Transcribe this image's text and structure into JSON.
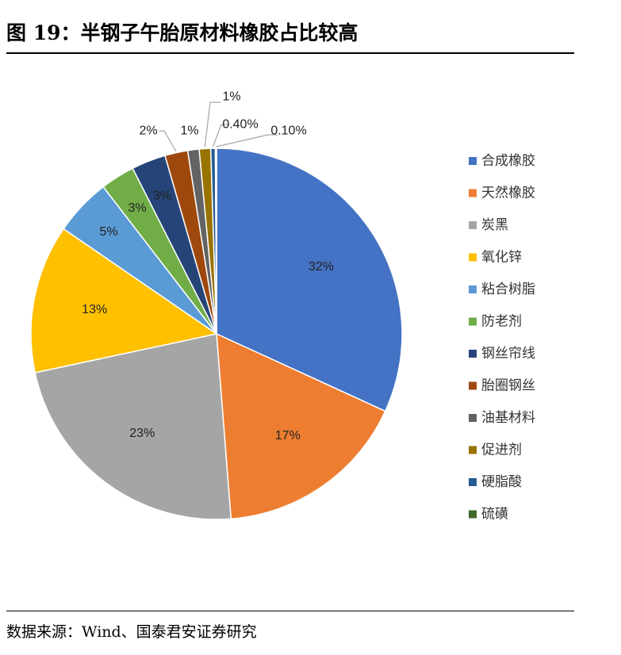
{
  "title": "图 19：半钢子午胎原材料橡胶占比较高",
  "source": "数据来源：Wind、国泰君安证券研究",
  "chart_data": {
    "type": "pie",
    "title": "",
    "legend_position": "right",
    "slices": [
      {
        "name": "合成橡胶",
        "value": 32,
        "label": "32%",
        "color": "#4472C4"
      },
      {
        "name": "天然橡胶",
        "value": 17,
        "label": "17%",
        "color": "#ED7D31"
      },
      {
        "name": "炭黑",
        "value": 23,
        "label": "23%",
        "color": "#A5A5A5"
      },
      {
        "name": "氧化锌",
        "value": 13,
        "label": "13%",
        "color": "#FFC000"
      },
      {
        "name": "粘合树脂",
        "value": 5,
        "label": "5%",
        "color": "#5B9BD5"
      },
      {
        "name": "防老剂",
        "value": 3,
        "label": "3%",
        "color": "#70AD47"
      },
      {
        "name": "钢丝帘线",
        "value": 3,
        "label": "3%",
        "color": "#264478"
      },
      {
        "name": "胎圈钢丝",
        "value": 2,
        "label": "2%",
        "color": "#9E480E"
      },
      {
        "name": "油基材料",
        "value": 1,
        "label": "1%",
        "color": "#636363"
      },
      {
        "name": "促进剂",
        "value": 1,
        "label": "1%",
        "color": "#997300"
      },
      {
        "name": "硬脂酸",
        "value": 0.4,
        "label": "0.40%",
        "color": "#255E91"
      },
      {
        "name": "硫磺",
        "value": 0.1,
        "label": "0.10%",
        "color": "#43682B"
      }
    ]
  }
}
